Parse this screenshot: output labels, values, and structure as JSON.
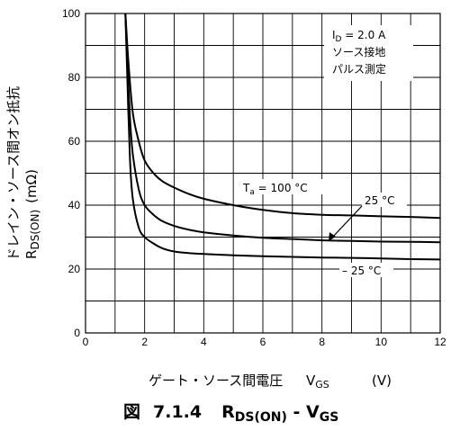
{
  "chart_data": {
    "type": "line",
    "title": "",
    "xlabel": "ゲート・ソース間電圧　V_GS　(V)",
    "xlabel_main": "ゲート・ソース間電圧",
    "xlabel_sym": "V",
    "xlabel_sub": "GS",
    "xlabel_unit": "(V)",
    "ylabel": "ドレイン・ソース間オン抵抗 R_DS(ON) (mΩ)",
    "ylabel_main": "ドレイン・ソース間オン抵抗",
    "ylabel_sym": "R",
    "ylabel_sub": "DS(ON)",
    "ylabel_unit": "(mΩ)",
    "xlim": [
      0,
      12
    ],
    "ylim": [
      0,
      100
    ],
    "x_ticks": [
      "0",
      "2",
      "4",
      "6",
      "8",
      "10",
      "12"
    ],
    "y_ticks": [
      "0",
      "20",
      "40",
      "60",
      "80",
      "100"
    ],
    "grid": true,
    "conditions": {
      "line1_sym": "I",
      "line1_sub": "D",
      "line1_rest": " = 2.0 A",
      "line2": "ソース接地",
      "line3": "パルス測定"
    },
    "series": [
      {
        "name": "Ta = 100 °C",
        "x": [
          1.35,
          1.45,
          1.6,
          1.8,
          2.0,
          2.3,
          2.6,
          3.0,
          3.5,
          4.0,
          5.0,
          6.0,
          7.0,
          8.0,
          9.0,
          10.0,
          11.0,
          12.0
        ],
        "values": [
          100,
          85,
          69,
          60,
          54,
          50,
          47.5,
          45.5,
          43.5,
          42,
          40,
          38.5,
          37.5,
          37,
          36.8,
          36.5,
          36.3,
          36
        ]
      },
      {
        "name": "25 °C",
        "x": [
          1.35,
          1.4,
          1.5,
          1.6,
          1.8,
          2.0,
          2.3,
          2.6,
          3.0,
          3.5,
          4.0,
          5.0,
          6.0,
          7.0,
          8.0,
          9.0,
          10.0,
          11.0,
          12.0
        ],
        "values": [
          100,
          88,
          68,
          56,
          45,
          40,
          37,
          35,
          33.5,
          32.3,
          31.5,
          30.5,
          29.8,
          29.4,
          29,
          28.8,
          28.6,
          28.5,
          28.4
        ]
      },
      {
        "name": "−25 °C",
        "x": [
          1.35,
          1.4,
          1.5,
          1.6,
          1.8,
          2.0,
          2.3,
          2.6,
          3.0,
          3.5,
          4.0,
          5.0,
          6.0,
          7.0,
          8.0,
          9.0,
          10.0,
          11.0,
          12.0
        ],
        "values": [
          100,
          84,
          55,
          42,
          33,
          30,
          28,
          26.5,
          25.5,
          25,
          24.7,
          24.3,
          24,
          23.8,
          23.6,
          23.5,
          23.3,
          23.1,
          23
        ]
      }
    ],
    "annotations": {
      "ta_sym": "T",
      "ta_sub": "a",
      "ta_rest": " = 100 °C",
      "t25": "25 °C",
      "tm25": "– 25 °C"
    }
  },
  "caption": {
    "prefix": "図",
    "number": "7.1.4",
    "r_sym": "R",
    "r_sub": "DS(ON)",
    "dash": " - ",
    "v_sym": "V",
    "v_sub": "GS"
  }
}
